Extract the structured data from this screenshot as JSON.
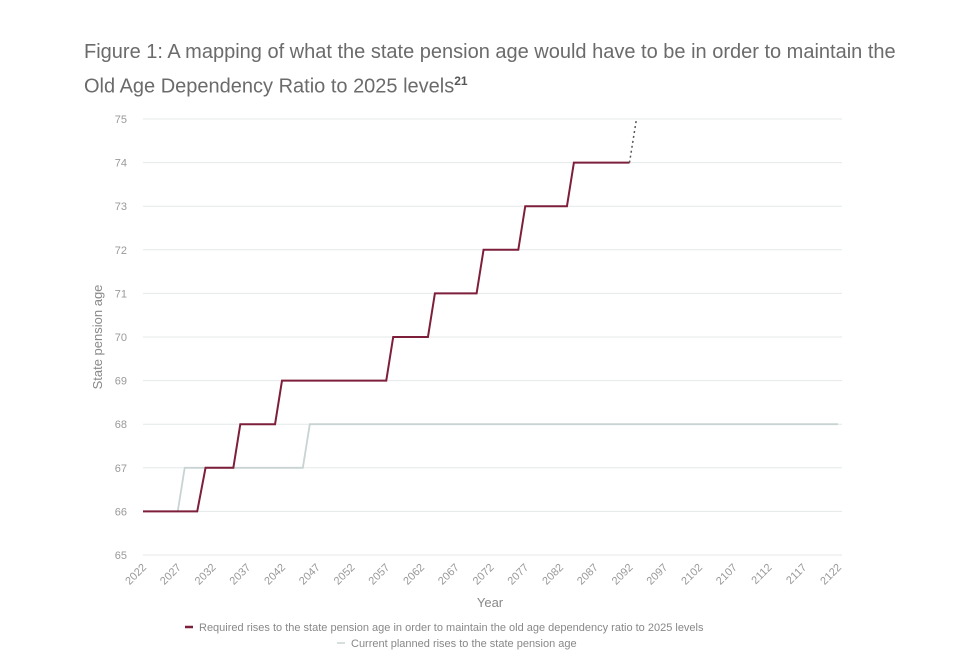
{
  "chart_data": {
    "type": "line",
    "title": "Figure 1: A mapping of what the state pension age would have to be in order to maintain the Old Age Dependency Ratio to 2025 levels",
    "title_footnote": "21",
    "xlabel": "Year",
    "ylabel": "State pension age",
    "xlim": [
      2022,
      2122
    ],
    "ylim": [
      65,
      75
    ],
    "xticks": [
      "2022",
      "2027",
      "2032",
      "2037",
      "2042",
      "2047",
      "2052",
      "2057",
      "2062",
      "2067",
      "2072",
      "2077",
      "2082",
      "2087",
      "2092",
      "2097",
      "2102",
      "2107",
      "2112",
      "2117",
      "2122"
    ],
    "yticks": [
      "65",
      "66",
      "67",
      "68",
      "69",
      "70",
      "71",
      "72",
      "73",
      "74",
      "75"
    ],
    "grid": true,
    "legend_position": "bottom",
    "series": [
      {
        "name": "Required rises to the state pension age in order to maintain the old age dependency ratio to 2025 levels",
        "color": "#7d1f3a",
        "points": [
          [
            2022,
            66
          ],
          [
            2029.8,
            66
          ],
          [
            2031,
            67
          ],
          [
            2035,
            67
          ],
          [
            2036,
            68
          ],
          [
            2041,
            68
          ],
          [
            2042,
            69
          ],
          [
            2057,
            69
          ],
          [
            2058,
            70
          ],
          [
            2063,
            70
          ],
          [
            2064,
            71
          ],
          [
            2070,
            71
          ],
          [
            2071,
            72
          ],
          [
            2076,
            72
          ],
          [
            2077,
            73
          ],
          [
            2083,
            73
          ],
          [
            2084,
            74
          ],
          [
            2092,
            74
          ]
        ],
        "projection": [
          [
            2092,
            74
          ],
          [
            2093,
            75
          ]
        ]
      },
      {
        "name": "Current planned rises to the state pension age",
        "color": "#c9d3d3",
        "points": [
          [
            2022,
            66
          ],
          [
            2027,
            66
          ],
          [
            2028,
            67
          ],
          [
            2045,
            67
          ],
          [
            2046,
            68
          ],
          [
            2122,
            68
          ]
        ]
      }
    ]
  }
}
